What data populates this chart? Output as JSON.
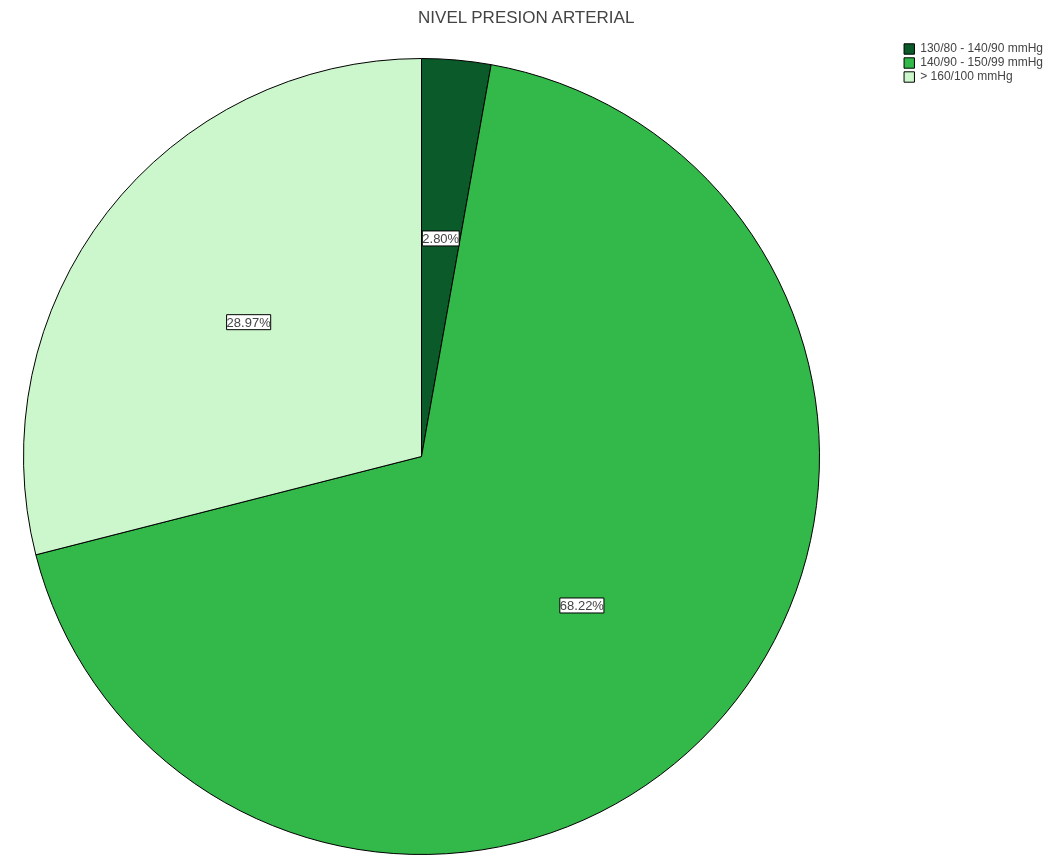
{
  "chart_data": {
    "type": "pie",
    "title": "NIVEL PRESION ARTERIAL",
    "categories": [
      "130/80 - 140/90 mmHg",
      "140/90 - 150/99 mmHg",
      "> 160/100 mmHg"
    ],
    "values": [
      2.8,
      68.22,
      28.97
    ],
    "colors": [
      "#0b5a2a",
      "#33b84a",
      "#ccf7cc"
    ],
    "value_labels": [
      "2.80%",
      "68.22%",
      "28.97%"
    ],
    "legend": "top right"
  }
}
